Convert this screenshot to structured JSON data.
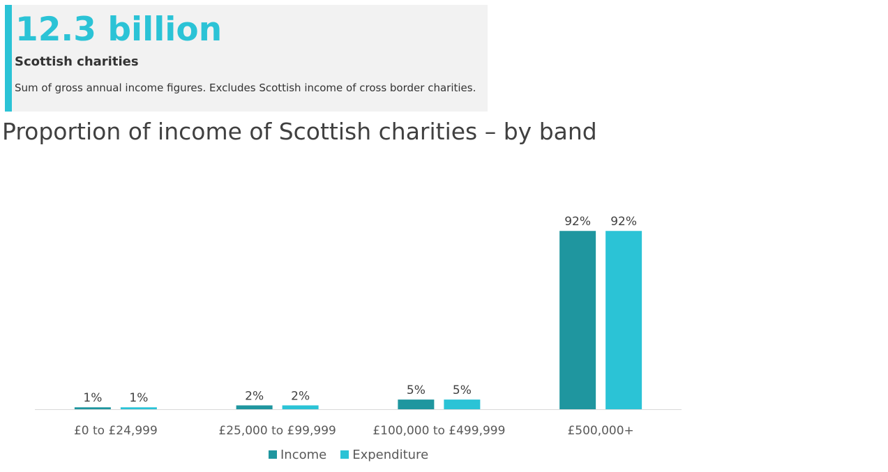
{
  "card": {
    "value": "12.3 billion",
    "label": "Scottish charities",
    "description": "Sum of gross annual income figures. Excludes Scottish income of cross border charities.",
    "value_color": "#2BC3D6",
    "accent_color": "#2BC3D6"
  },
  "chart_data": {
    "type": "bar",
    "title": "Proportion of income of Scottish charities – by band",
    "xlabel": "",
    "ylabel": "",
    "categories": [
      "£0 to £24,999",
      "£25,000 to £99,999",
      "£100,000 to £499,999",
      "£500,000+"
    ],
    "series": [
      {
        "name": "Income",
        "values": [
          1,
          2,
          5,
          92
        ],
        "labels": [
          "1%",
          "2%",
          "5%",
          "92%"
        ],
        "color": "#1F969F"
      },
      {
        "name": "Expenditure",
        "values": [
          1,
          2,
          5,
          92
        ],
        "labels": [
          "1%",
          "2%",
          "5%",
          "92%"
        ],
        "color": "#2BC3D6"
      }
    ],
    "ylim": [
      0,
      100
    ],
    "grid": false,
    "legend": "bottom-center"
  }
}
